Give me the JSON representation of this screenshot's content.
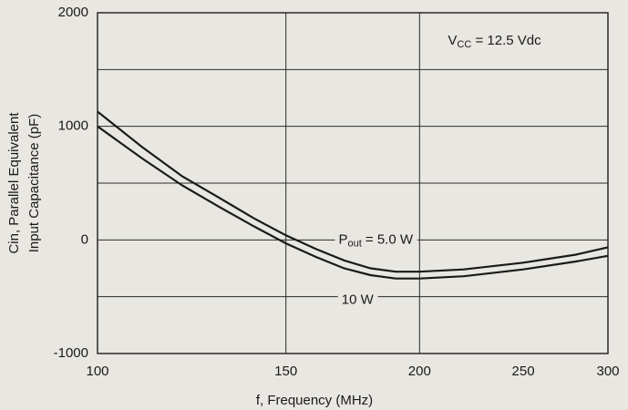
{
  "chart_data": {
    "type": "line",
    "xlabel": "f, Frequency (MHz)",
    "ylabel": [
      "Cin, Parallel Equivalent",
      "Input Capacitance (pF)"
    ],
    "xscale": "log",
    "xlim": [
      100,
      300
    ],
    "xticks": [
      100,
      150,
      200,
      250,
      300
    ],
    "xgrid": [
      150,
      200,
      300
    ],
    "ylim": [
      -1000,
      2000
    ],
    "yticks": [
      -1000,
      0,
      1000,
      2000
    ],
    "ygrid": [
      -1000,
      -500,
      0,
      500,
      1000,
      1500,
      2000
    ],
    "x": [
      100,
      110,
      120,
      130,
      140,
      150,
      160,
      170,
      180,
      190,
      200,
      220,
      250,
      280,
      300
    ],
    "series": [
      {
        "name": "Pout = 5.0 W",
        "color": "#1a1a1a",
        "values": [
          1130,
          820,
          560,
          370,
          190,
          40,
          -80,
          -180,
          -250,
          -280,
          -280,
          -260,
          -200,
          -130,
          -65
        ]
      },
      {
        "name": "10 W",
        "color": "#1a1a1a",
        "values": [
          1000,
          720,
          480,
          290,
          120,
          -30,
          -150,
          -250,
          -310,
          -340,
          -340,
          -320,
          -260,
          -190,
          -140
        ]
      }
    ],
    "annotations": [
      {
        "parts": [
          "V",
          "CC",
          " = 12.5 Vdc"
        ],
        "x": 235,
        "y": 1750
      },
      {
        "parts": [
          "P",
          "out",
          " = 5.0 W"
        ],
        "x": 182,
        "y": 0
      },
      {
        "parts": [
          "10 W"
        ],
        "x": 175,
        "y": -530
      }
    ]
  }
}
